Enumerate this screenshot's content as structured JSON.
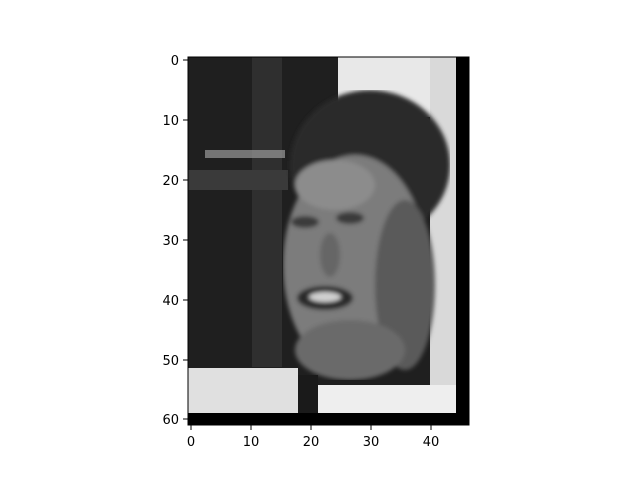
{
  "figure": {
    "content": "grayscale pixel image of a face",
    "x_ticks": [
      "0",
      "10",
      "20",
      "30",
      "40"
    ],
    "y_ticks": [
      "0",
      "10",
      "20",
      "30",
      "40",
      "50",
      "60"
    ]
  },
  "colors": {
    "background": "#ffffff",
    "axis": "#000000",
    "dark_bg": "#202020",
    "light_bg": "#e6e6e6",
    "hair": "#2c2c2c",
    "skin": "#7a7a7a",
    "skin_shadow": "#4a4a4a",
    "right_border": "#000000"
  }
}
